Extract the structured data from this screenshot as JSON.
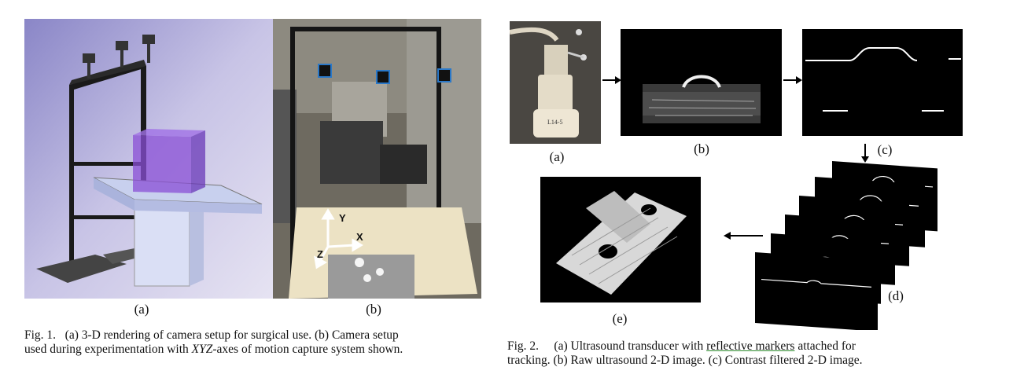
{
  "fig1": {
    "label_a": "(a)",
    "label_b": "(b)",
    "axis_y": "Y",
    "axis_x": "X",
    "axis_z": "Z",
    "caption_line1": "Fig. 1.   (a) 3-D rendering of camera setup for surgical use. (b) Camera setup",
    "caption_line2_pre": "used during experimentation with ",
    "caption_line2_em": "XYZ",
    "caption_line2_post": "-axes of motion capture system shown."
  },
  "fig2": {
    "label_a": "(a)",
    "label_b": "(b)",
    "label_c": "(c)",
    "label_d": "(d)",
    "label_e": "(e)",
    "transducer_text": "L14-5",
    "caption_line1_pre": "Fig. 2.     (a) Ultrasound transducer with ",
    "caption_line1_link": "reflective markers",
    "caption_line1_post": " attached for",
    "caption_line2": "tracking. (b) Raw ultrasound 2-D image. (c) Contrast filtered 2-D image."
  },
  "colors": {
    "render_bg": "#c9c5e6",
    "frame": "#1a1a1a",
    "purple_box": "#8a4fd6",
    "table_top": "#c8d0ee",
    "pedestal": "#dadff5"
  }
}
